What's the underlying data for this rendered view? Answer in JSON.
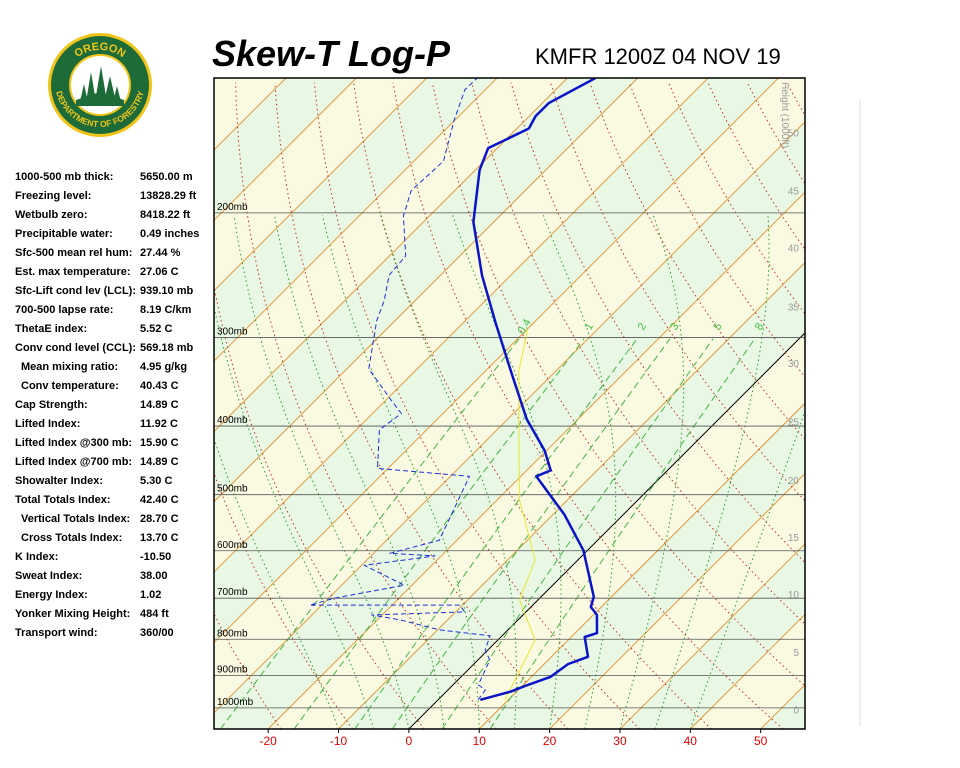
{
  "logo": {
    "top": "OREGON",
    "bottom": "DEPARTMENT OF FORESTRY"
  },
  "title": "Skew-T Log-P",
  "station": "KMFR 1200Z 04 NOV 19",
  "indices": [
    {
      "label": "1000-500 mb thick:",
      "value": "5650.00 m"
    },
    {
      "label": "Freezing level:",
      "value": "13828.29 ft"
    },
    {
      "label": "Wetbulb zero:",
      "value": "8418.22 ft"
    },
    {
      "label": "Precipitable water:",
      "value": "0.49 inches"
    },
    {
      "label": "Sfc-500 mean rel hum:",
      "value": "27.44 %"
    },
    {
      "label": "Est. max temperature:",
      "value": "27.06 C"
    },
    {
      "label": "Sfc-Lift cond lev (LCL):",
      "value": "939.10 mb"
    },
    {
      "label": "700-500 lapse rate:",
      "value": "8.19 C/km"
    },
    {
      "label": "ThetaE index:",
      "value": "5.52 C"
    },
    {
      "label": "Conv cond level (CCL):",
      "value": "569.18 mb"
    },
    {
      "label": "Mean mixing ratio:",
      "value": "4.95 g/kg"
    },
    {
      "label": "Conv temperature:",
      "value": "40.43 C"
    },
    {
      "label": "Cap Strength:",
      "value": "14.89 C"
    },
    {
      "label": "Lifted Index:",
      "value": "11.92 C"
    },
    {
      "label": "Lifted Index @300 mb:",
      "value": "15.90 C"
    },
    {
      "label": "Lifted Index @700 mb:",
      "value": "14.89 C"
    },
    {
      "label": "Showalter Index:",
      "value": "5.30 C"
    },
    {
      "label": "Total Totals Index:",
      "value": "42.40 C"
    },
    {
      "label": "Vertical Totals Index:",
      "value": "28.70 C"
    },
    {
      "label": "Cross Totals Index:",
      "value": "13.70 C"
    },
    {
      "label": "K Index:",
      "value": "-10.50"
    },
    {
      "label": "Sweat Index:",
      "value": "38.00"
    },
    {
      "label": "Energy Index:",
      "value": "1.02"
    },
    {
      "label": "Yonker Mixing Height:",
      "value": "484 ft"
    },
    {
      "label": "Transport wind:",
      "value": "360/00"
    }
  ],
  "chart_data": {
    "type": "skew-t",
    "xlim": [
      -27.7,
      56.3
    ],
    "xticks": [
      -20,
      -10,
      0,
      10,
      20,
      30,
      40,
      50
    ],
    "ylim": [
      1071,
      129
    ],
    "log_scale": true,
    "yticks": [
      {
        "value": 200,
        "label": "200mb"
      },
      {
        "value": 300,
        "label": "300mb"
      },
      {
        "value": 400,
        "label": "400mb"
      },
      {
        "value": 500,
        "label": "500mb"
      },
      {
        "value": 600,
        "label": "600mb"
      },
      {
        "value": 700,
        "label": "700mb"
      },
      {
        "value": 800,
        "label": "800mb"
      },
      {
        "value": 900,
        "label": "900mb"
      },
      {
        "value": 1000,
        "label": "1000mb"
      }
    ],
    "height_label": "Height (1000ft)",
    "height_ticks": [
      {
        "value": 0,
        "pressure": 1006
      },
      {
        "value": 5,
        "pressure": 834
      },
      {
        "value": 10,
        "pressure": 691
      },
      {
        "value": 15,
        "pressure": 574
      },
      {
        "value": 20,
        "pressure": 477
      },
      {
        "value": 25,
        "pressure": 394
      },
      {
        "value": 30,
        "pressure": 326
      },
      {
        "value": 35,
        "pressure": 271
      },
      {
        "value": 40,
        "pressure": 224
      },
      {
        "value": 45,
        "pressure": 186
      },
      {
        "value": 50,
        "pressure": 154
      }
    ],
    "mixing_ratios": [
      0.4,
      1,
      2,
      3,
      5,
      8
    ],
    "mixing_label_pressure": 291,
    "series": [
      {
        "name": "Temperature",
        "color": "#0a14c8",
        "pressure": [
          974,
          949,
          931,
          904,
          867,
          847,
          794,
          784,
          739,
          720,
          697,
          599,
          534,
          471,
          462,
          433,
          391,
          339,
          286,
          245,
          206,
          174,
          162,
          152,
          146,
          140,
          129
        ],
        "values": [
          6.0,
          9.1,
          10.4,
          12.7,
          13.4,
          15.2,
          11.9,
          13.1,
          10.5,
          8.5,
          7.5,
          -0.6,
          -8.3,
          -17.8,
          -16.6,
          -20.3,
          -27.3,
          -35.6,
          -45.4,
          -54.1,
          -62.9,
          -69.4,
          -71.3,
          -68.3,
          -69.1,
          -69.1,
          -66.0
        ]
      },
      {
        "name": "Dewpoint",
        "color": "#1a2ee0",
        "pressure": [
          974,
          943,
          928,
          856,
          828,
          791,
          776,
          751,
          739,
          732,
          716,
          716,
          700,
          671,
          629,
          610,
          605,
          580,
          471,
          459,
          405,
          384,
          368,
          332,
          284,
          266,
          245,
          230,
          202,
          186,
          169,
          148,
          134,
          129
        ],
        "values": [
          5.7,
          5.3,
          3.6,
          1.7,
          -0.4,
          -1.7,
          -9.7,
          -16.8,
          -21.5,
          -8.7,
          -10.4,
          -31.7,
          -29.2,
          -21.1,
          -29.6,
          -20.9,
          -27.7,
          -22.5,
          -27.3,
          -41.5,
          -46.7,
          -45.9,
          -49.2,
          -56.9,
          -62.6,
          -64.4,
          -67.3,
          -67.7,
          -73.7,
          -76.2,
          -75.8,
          -80.1,
          -82.9,
          -82.8
        ]
      },
      {
        "name": "Parcel",
        "color": "#e8e830",
        "pressure": [
          974,
          913,
          802,
          704,
          618,
          509,
          393,
          334,
          293
        ],
        "values": [
          9.5,
          8.1,
          5.3,
          -2.6,
          -6.1,
          -16.8,
          -28.2,
          -35.3,
          -39.8
        ]
      }
    ]
  }
}
